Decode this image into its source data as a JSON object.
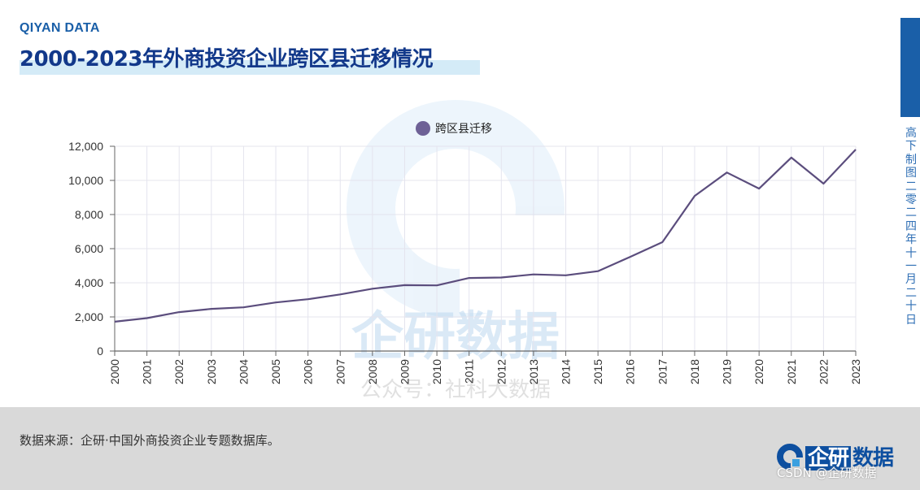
{
  "brand": "QIYAN DATA",
  "title": "2000-2023年外商投资企业跨区县迁移情况",
  "side_note": "高下制图 二零二四年十一月二十日",
  "source": "数据来源：企研·中国外商投资企业专题数据库。",
  "logo": {
    "box": "企研",
    "text": "数据"
  },
  "credit": "CSDN @企研数据",
  "watermark": {
    "name": "企研数据",
    "sub": "公众号：社科大数据"
  },
  "colors": {
    "line": "#5b4d7d",
    "legend_dot": "#6e6196",
    "title": "#12388a",
    "accent": "#1a5fa8",
    "grid": "#e4e4ee"
  },
  "chart_data": {
    "type": "line",
    "title": "",
    "xlabel": "",
    "ylabel": "",
    "legend_position": "top-center",
    "grid": true,
    "ylim": [
      0,
      12000
    ],
    "yticks": [
      0,
      2000,
      4000,
      6000,
      8000,
      10000,
      12000
    ],
    "ytick_labels": [
      "0",
      "2,000",
      "4,000",
      "6,000",
      "8,000",
      "10,000",
      "12,000"
    ],
    "x": [
      "2000",
      "2001",
      "2002",
      "2003",
      "2004",
      "2005",
      "2006",
      "2007",
      "2008",
      "2009",
      "2010",
      "2011",
      "2012",
      "2013",
      "2014",
      "2015",
      "2016",
      "2017",
      "2018",
      "2019",
      "2020",
      "2021",
      "2022",
      "2023"
    ],
    "series": [
      {
        "name": "跨区县迁移",
        "values": [
          1720,
          1930,
          2280,
          2470,
          2560,
          2850,
          3040,
          3320,
          3650,
          3860,
          3850,
          4280,
          4310,
          4490,
          4440,
          4680,
          5520,
          6380,
          9090,
          10460,
          9520,
          11340,
          9810,
          11810
        ]
      }
    ]
  }
}
